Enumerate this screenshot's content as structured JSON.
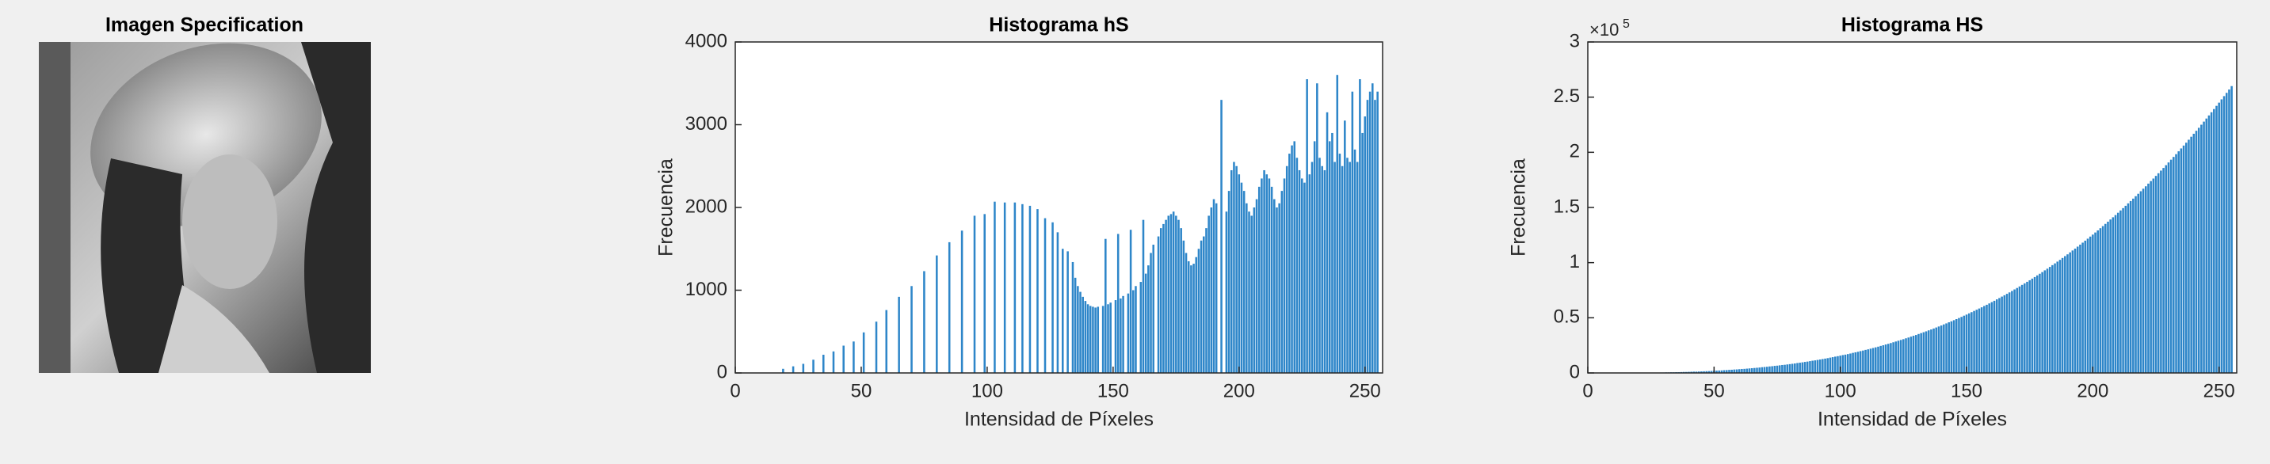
{
  "image": {
    "title": "Imagen Specification"
  },
  "chart_data": [
    {
      "type": "bar",
      "title": "Histograma hS",
      "xlabel": "Intensidad de Píxeles",
      "ylabel": "Frecuencia",
      "color": "#2e86c9",
      "xlim": [
        0,
        257
      ],
      "xticks": [
        0,
        50,
        100,
        150,
        200,
        250
      ],
      "ylim": [
        0,
        4000
      ],
      "yticks": [
        0,
        1000,
        2000,
        3000,
        4000
      ],
      "x": [
        0,
        1,
        2,
        3,
        4,
        5,
        6,
        7,
        8,
        9,
        10,
        11,
        12,
        13,
        14,
        15,
        16,
        17,
        18,
        19,
        20,
        21,
        22,
        23,
        24,
        25,
        26,
        27,
        28,
        29,
        30,
        31,
        32,
        33,
        34,
        35,
        36,
        37,
        38,
        39,
        40,
        41,
        42,
        43,
        44,
        45,
        46,
        47,
        48,
        49,
        50,
        51,
        52,
        53,
        54,
        55,
        56,
        57,
        58,
        59,
        60,
        61,
        62,
        63,
        64,
        65,
        66,
        67,
        68,
        69,
        70,
        71,
        72,
        73,
        74,
        75,
        76,
        77,
        78,
        79,
        80,
        81,
        82,
        83,
        84,
        85,
        86,
        87,
        88,
        89,
        90,
        91,
        92,
        93,
        94,
        95,
        96,
        97,
        98,
        99,
        100,
        101,
        102,
        103,
        104,
        105,
        106,
        107,
        108,
        109,
        110,
        111,
        112,
        113,
        114,
        115,
        116,
        117,
        118,
        119,
        120,
        121,
        122,
        123,
        124,
        125,
        126,
        127,
        128,
        129,
        130,
        131,
        132,
        133,
        134,
        135,
        136,
        137,
        138,
        139,
        140,
        141,
        142,
        143,
        144,
        145,
        146,
        147,
        148,
        149,
        150,
        151,
        152,
        153,
        154,
        155,
        156,
        157,
        158,
        159,
        160,
        161,
        162,
        163,
        164,
        165,
        166,
        167,
        168,
        169,
        170,
        171,
        172,
        173,
        174,
        175,
        176,
        177,
        178,
        179,
        180,
        181,
        182,
        183,
        184,
        185,
        186,
        187,
        188,
        189,
        190,
        191,
        192,
        193,
        194,
        195,
        196,
        197,
        198,
        199,
        200,
        201,
        202,
        203,
        204,
        205,
        206,
        207,
        208,
        209,
        210,
        211,
        212,
        213,
        214,
        215,
        216,
        217,
        218,
        219,
        220,
        221,
        222,
        223,
        224,
        225,
        226,
        227,
        228,
        229,
        230,
        231,
        232,
        233,
        234,
        235,
        236,
        237,
        238,
        239,
        240,
        241,
        242,
        243,
        244,
        245,
        246,
        247,
        248,
        249,
        250,
        251,
        252,
        253,
        254,
        255
      ],
      "values": [
        0,
        0,
        0,
        0,
        0,
        0,
        0,
        0,
        0,
        0,
        0,
        0,
        0,
        0,
        0,
        0,
        0,
        0,
        0,
        50,
        0,
        0,
        0,
        80,
        0,
        0,
        0,
        110,
        0,
        0,
        0,
        160,
        0,
        0,
        0,
        220,
        0,
        0,
        0,
        260,
        0,
        0,
        0,
        330,
        0,
        0,
        0,
        380,
        0,
        0,
        0,
        490,
        0,
        0,
        0,
        0,
        620,
        0,
        0,
        0,
        760,
        0,
        0,
        0,
        0,
        920,
        0,
        0,
        0,
        0,
        1050,
        0,
        0,
        0,
        0,
        1230,
        0,
        0,
        0,
        0,
        1420,
        0,
        0,
        0,
        0,
        1580,
        0,
        0,
        0,
        0,
        1720,
        0,
        0,
        0,
        0,
        1900,
        0,
        0,
        0,
        1920,
        0,
        0,
        0,
        2070,
        0,
        0,
        0,
        2060,
        0,
        0,
        0,
        2060,
        0,
        0,
        2040,
        0,
        0,
        2020,
        0,
        0,
        1980,
        0,
        0,
        1870,
        0,
        0,
        1820,
        0,
        1700,
        0,
        1500,
        0,
        1470,
        0,
        1340,
        1150,
        1050,
        980,
        920,
        870,
        830,
        810,
        800,
        790,
        800,
        0,
        810,
        1620,
        830,
        850,
        0,
        880,
        1680,
        900,
        930,
        0,
        960,
        1730,
        1000,
        1050,
        0,
        1100,
        1850,
        1200,
        1300,
        1450,
        1550,
        0,
        1650,
        1750,
        1800,
        1850,
        1900,
        1920,
        1950,
        1900,
        1850,
        1750,
        1600,
        1450,
        1350,
        1300,
        1320,
        1400,
        1500,
        1600,
        1650,
        1750,
        1900,
        2000,
        2100,
        2050,
        0,
        3300,
        0,
        1950,
        2200,
        2450,
        2550,
        2500,
        2400,
        2300,
        2200,
        2050,
        1950,
        1900,
        2000,
        2100,
        2250,
        2350,
        2450,
        2400,
        2350,
        2250,
        2100,
        2000,
        2050,
        2200,
        2350,
        2500,
        2650,
        2750,
        2800,
        2600,
        2450,
        2350,
        2300,
        3550,
        2400,
        2550,
        2800,
        3500,
        2600,
        2500,
        2450,
        3150,
        2800,
        2900,
        2550,
        3600,
        2650,
        2500,
        3050,
        2600,
        2550,
        3400,
        2700,
        2550,
        3550,
        2900,
        3100,
        3300,
        3400,
        3500,
        3300,
        3400
      ]
    },
    {
      "type": "bar",
      "title": "Histograma HS",
      "xlabel": "Intensidad de Píxeles",
      "ylabel": "Frecuencia",
      "color": "#2e86c9",
      "y_multiplier_base": "×10",
      "y_multiplier_exponent": "5",
      "xlim": [
        0,
        257
      ],
      "xticks": [
        0,
        50,
        100,
        150,
        200,
        250
      ],
      "ylim": [
        0,
        300000
      ],
      "yticks": [
        0,
        {
          "value": 50000,
          "label": "0.5"
        },
        {
          "value": 100000,
          "label": "1"
        },
        {
          "value": 150000,
          "label": "1.5"
        },
        {
          "value": 200000,
          "label": "2"
        },
        {
          "value": 250000,
          "label": "2.5"
        },
        {
          "value": 300000,
          "label": "3"
        }
      ],
      "x": [
        0,
        1,
        2,
        3,
        4,
        5,
        6,
        7,
        8,
        9,
        10,
        11,
        12,
        13,
        14,
        15,
        16,
        17,
        18,
        19,
        20,
        21,
        22,
        23,
        24,
        25,
        26,
        27,
        28,
        29,
        30,
        31,
        32,
        33,
        34,
        35,
        36,
        37,
        38,
        39,
        40,
        41,
        42,
        43,
        44,
        45,
        46,
        47,
        48,
        49,
        50,
        51,
        52,
        53,
        54,
        55,
        56,
        57,
        58,
        59,
        60,
        61,
        62,
        63,
        64,
        65,
        66,
        67,
        68,
        69,
        70,
        71,
        72,
        73,
        74,
        75,
        76,
        77,
        78,
        79,
        80,
        81,
        82,
        83,
        84,
        85,
        86,
        87,
        88,
        89,
        90,
        91,
        92,
        93,
        94,
        95,
        96,
        97,
        98,
        99,
        100,
        101,
        102,
        103,
        104,
        105,
        106,
        107,
        108,
        109,
        110,
        111,
        112,
        113,
        114,
        115,
        116,
        117,
        118,
        119,
        120,
        121,
        122,
        123,
        124,
        125,
        126,
        127,
        128,
        129,
        130,
        131,
        132,
        133,
        134,
        135,
        136,
        137,
        138,
        139,
        140,
        141,
        142,
        143,
        144,
        145,
        146,
        147,
        148,
        149,
        150,
        151,
        152,
        153,
        154,
        155,
        156,
        157,
        158,
        159,
        160,
        161,
        162,
        163,
        164,
        165,
        166,
        167,
        168,
        169,
        170,
        171,
        172,
        173,
        174,
        175,
        176,
        177,
        178,
        179,
        180,
        181,
        182,
        183,
        184,
        185,
        186,
        187,
        188,
        189,
        190,
        191,
        192,
        193,
        194,
        195,
        196,
        197,
        198,
        199,
        200,
        201,
        202,
        203,
        204,
        205,
        206,
        207,
        208,
        209,
        210,
        211,
        212,
        213,
        214,
        215,
        216,
        217,
        218,
        219,
        220,
        221,
        222,
        223,
        224,
        225,
        226,
        227,
        228,
        229,
        230,
        231,
        232,
        233,
        234,
        235,
        236,
        237,
        238,
        239,
        240,
        241,
        242,
        243,
        244,
        245,
        246,
        247,
        248,
        249,
        250,
        251,
        252,
        253,
        254,
        255
      ],
      "values": [
        0,
        0,
        0,
        0,
        0,
        0,
        0,
        0,
        0,
        0,
        0,
        0,
        0,
        0,
        0,
        100,
        100,
        100,
        100,
        100,
        100,
        100,
        200,
        200,
        200,
        200,
        300,
        300,
        300,
        400,
        400,
        500,
        500,
        600,
        600,
        700,
        700,
        800,
        900,
        900,
        1000,
        1100,
        1200,
        1200,
        1300,
        1400,
        1500,
        1600,
        1700,
        1800,
        2000,
        2100,
        2200,
        2300,
        2500,
        2600,
        2800,
        2900,
        3100,
        3200,
        3400,
        3600,
        3700,
        3900,
        4100,
        4300,
        4500,
        4700,
        4900,
        5200,
        5400,
        5600,
        5900,
        6100,
        6400,
        6600,
        6900,
        7200,
        7400,
        7700,
        8000,
        8300,
        8600,
        9000,
        9300,
        9600,
        10000,
        10300,
        10700,
        11100,
        11400,
        11800,
        12200,
        12600,
        13000,
        13400,
        13900,
        14300,
        14800,
        15200,
        15700,
        16200,
        16600,
        17100,
        17600,
        18200,
        18700,
        19200,
        19800,
        20300,
        20900,
        21400,
        22000,
        22600,
        23200,
        23800,
        24500,
        25100,
        25800,
        26400,
        27100,
        27800,
        28500,
        29200,
        29900,
        30600,
        31400,
        32100,
        32900,
        33700,
        34400,
        35300,
        36100,
        36900,
        37700,
        38600,
        39400,
        40300,
        41200,
        42100,
        43000,
        44000,
        44900,
        45900,
        46800,
        47800,
        48800,
        49800,
        50800,
        51900,
        52900,
        54000,
        55100,
        56200,
        57300,
        58400,
        59500,
        60700,
        61800,
        63000,
        64200,
        65400,
        66700,
        67900,
        69200,
        70400,
        71700,
        73000,
        74300,
        75700,
        77000,
        78400,
        79800,
        81200,
        82600,
        84000,
        85500,
        86900,
        88400,
        89900,
        91400,
        93000,
        94500,
        96100,
        97700,
        99300,
        100900,
        102500,
        104200,
        105900,
        107500,
        109300,
        111000,
        112700,
        114500,
        116300,
        118100,
        119900,
        121700,
        123600,
        125400,
        127300,
        129200,
        131200,
        133100,
        135100,
        137100,
        139100,
        141100,
        143100,
        145200,
        147300,
        149400,
        151500,
        153700,
        155800,
        158000,
        160200,
        162400,
        164700,
        167000,
        169200,
        171600,
        173900,
        176200,
        178600,
        181000,
        183400,
        185800,
        188300,
        190800,
        193300,
        195800,
        198300,
        200900,
        203500,
        206100,
        208700,
        211400,
        214100,
        216800,
        219500,
        222200,
        225000,
        227800,
        230600,
        233400,
        236300,
        239200,
        242100,
        245000,
        248000,
        250900,
        253900,
        256900,
        260000
      ]
    }
  ]
}
